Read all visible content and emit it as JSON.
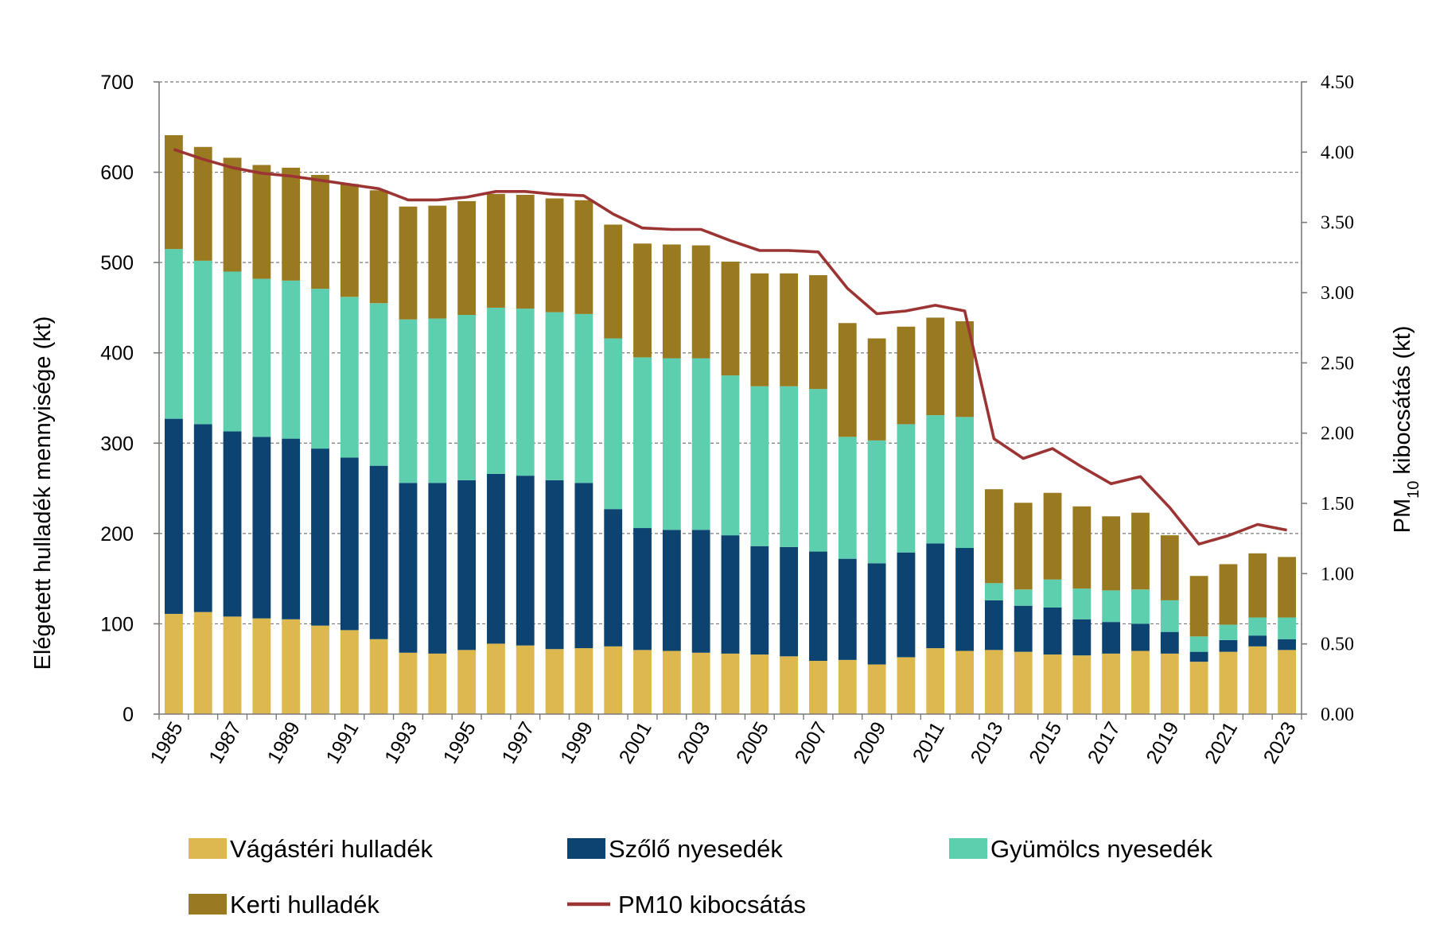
{
  "chart_data": {
    "type": "bar",
    "stacked": true,
    "x": [
      1985,
      1986,
      1987,
      1988,
      1989,
      1990,
      1991,
      1992,
      1993,
      1994,
      1995,
      1996,
      1997,
      1998,
      1999,
      2000,
      2001,
      2002,
      2003,
      2004,
      2005,
      2006,
      2007,
      2008,
      2009,
      2010,
      2011,
      2012,
      2013,
      2014,
      2015,
      2016,
      2017,
      2018,
      2019,
      2020,
      2021,
      2022,
      2023
    ],
    "x_tick_labels": [
      "1985",
      "1987",
      "1989",
      "1991",
      "1993",
      "1995",
      "1997",
      "1999",
      "2001",
      "2003",
      "2005",
      "2007",
      "2009",
      "2011",
      "2013",
      "2015",
      "2017",
      "2019",
      "2021",
      "2023"
    ],
    "series": [
      {
        "name": "Vágástéri hulladék",
        "color": "#dcb84f",
        "axis": "left",
        "values": [
          111,
          113,
          108,
          106,
          105,
          98,
          93,
          83,
          68,
          67,
          71,
          78,
          76,
          72,
          73,
          75,
          71,
          70,
          68,
          67,
          66,
          64,
          59,
          60,
          55,
          63,
          73,
          70,
          71,
          69,
          66,
          65,
          67,
          70,
          67,
          58,
          69,
          75,
          71
        ]
      },
      {
        "name": "Szőlő nyesedék",
        "color": "#0c4371",
        "axis": "left",
        "values": [
          216,
          208,
          205,
          201,
          200,
          196,
          191,
          192,
          188,
          189,
          188,
          188,
          188,
          187,
          183,
          152,
          135,
          134,
          136,
          131,
          120,
          121,
          121,
          112,
          112,
          116,
          116,
          114,
          55,
          51,
          52,
          40,
          35,
          30,
          24,
          11,
          13,
          12,
          12
        ]
      },
      {
        "name": "Gyümölcs nyesedék",
        "color": "#5ecfae",
        "axis": "left",
        "values": [
          188,
          181,
          177,
          175,
          175,
          177,
          178,
          180,
          181,
          182,
          183,
          184,
          185,
          186,
          187,
          189,
          189,
          190,
          190,
          177,
          177,
          178,
          180,
          135,
          136,
          142,
          142,
          145,
          19,
          18,
          31,
          34,
          35,
          38,
          35,
          17,
          17,
          20,
          24
        ]
      },
      {
        "name": "Kerti hulladék",
        "color": "#9a7a21",
        "axis": "left",
        "values": [
          126,
          126,
          126,
          126,
          125,
          126,
          125,
          125,
          125,
          125,
          126,
          126,
          126,
          126,
          126,
          126,
          126,
          126,
          125,
          126,
          125,
          125,
          126,
          126,
          113,
          108,
          108,
          106,
          104,
          96,
          96,
          91,
          82,
          85,
          72,
          67,
          67,
          71,
          67
        ]
      },
      {
        "name": "PM10 kibocsátás",
        "color": "#9c3434",
        "axis": "right",
        "type": "line",
        "values": [
          4.02,
          3.95,
          3.89,
          3.85,
          3.83,
          3.8,
          3.77,
          3.74,
          3.66,
          3.66,
          3.68,
          3.72,
          3.72,
          3.7,
          3.69,
          3.56,
          3.46,
          3.45,
          3.45,
          3.37,
          3.3,
          3.3,
          3.29,
          3.03,
          2.85,
          2.87,
          2.91,
          2.87,
          1.96,
          1.82,
          1.89,
          1.76,
          1.64,
          1.69,
          1.47,
          1.21,
          1.27,
          1.35,
          1.31
        ]
      }
    ],
    "y_left": {
      "label": "Elégetett hulladék mennyisége (kt)",
      "ylim": [
        0,
        700
      ],
      "ticks": [
        0,
        100,
        200,
        300,
        400,
        500,
        600,
        700
      ]
    },
    "y_right": {
      "label_main": "PM",
      "label_sub": "10",
      "label_rest": " kibocsátás (kt)",
      "ylim": [
        0,
        4.5
      ],
      "ticks": [
        "0.00",
        "0.50",
        "1.00",
        "1.50",
        "2.00",
        "2.50",
        "3.00",
        "3.50",
        "4.00",
        "4.50"
      ]
    },
    "grid": "horizontal-dashed",
    "legend_placement": "bottom",
    "legend": [
      "Vágástéri hulladék",
      "Szőlő nyesedék",
      "Gyümölcs nyesedék",
      "Kerti hulladék",
      "PM10 kibocsátás"
    ]
  }
}
